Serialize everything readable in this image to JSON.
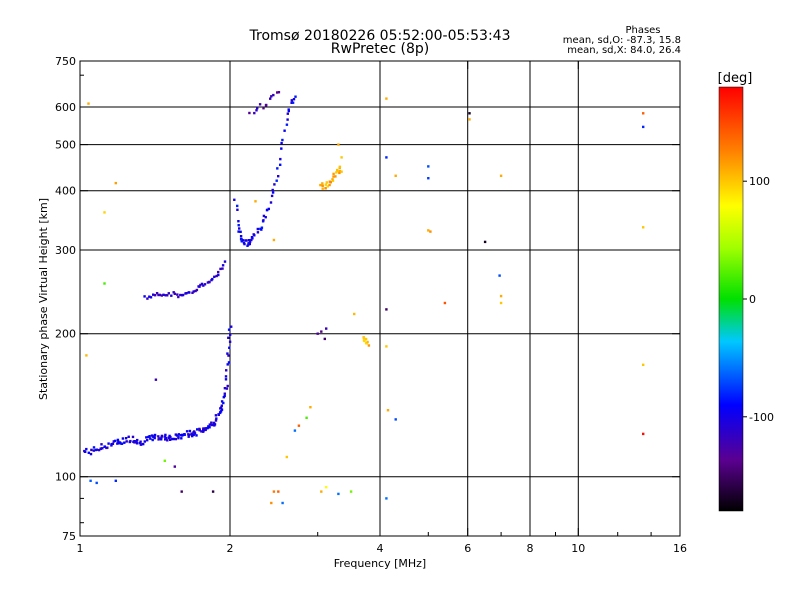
{
  "chart_data": {
    "type": "scatter",
    "title": "Tromsø 20180226 05:52:00-05:53:43",
    "subtitle": "RwPretec (8p)",
    "xlabel": "Frequency [MHz]",
    "ylabel": "Stationary phase Virtual Height [km]",
    "x_scale": "log",
    "y_scale": "log",
    "xlim": [
      1,
      16
    ],
    "ylim": [
      75,
      750
    ],
    "x_ticks": [
      1,
      2,
      4,
      6,
      8,
      10,
      16
    ],
    "y_ticks": [
      75,
      100,
      200,
      300,
      400,
      500,
      600,
      750
    ],
    "grid": true,
    "stats": {
      "heading": "Phases",
      "o_line": "mean, sd,O: -87.3, 15.8",
      "x_line": "mean, sd,X: 84.0, 26.4"
    },
    "colorbar": {
      "label": "[deg]",
      "range": [
        -180,
        180
      ],
      "ticks": [
        100,
        0,
        -100
      ]
    },
    "traces": [
      {
        "x": [
          1.02,
          1.05,
          1.08,
          1.1,
          1.12,
          1.15,
          1.18,
          1.2,
          1.22,
          1.25,
          1.28,
          1.3,
          1.32,
          1.35,
          1.38,
          1.4,
          1.42,
          1.45,
          1.48,
          1.5,
          1.52,
          1.55,
          1.58,
          1.6,
          1.62,
          1.65,
          1.68,
          1.7,
          1.72,
          1.75,
          1.78,
          1.8,
          1.82,
          1.85,
          1.87,
          1.9,
          1.92,
          1.94,
          1.96,
          1.97,
          1.98,
          1.99,
          2.0
        ],
        "y": [
          113,
          113,
          114,
          115,
          116,
          117,
          118,
          118,
          119,
          120,
          120,
          119,
          118,
          119,
          120,
          121,
          121,
          121,
          121,
          121,
          121,
          121,
          121,
          122,
          123,
          123,
          123,
          124,
          124,
          125,
          126,
          127,
          128,
          129,
          132,
          135,
          138,
          142,
          150,
          160,
          175,
          190,
          210
        ],
        "phase": -100,
        "jitter": 0.03,
        "dup": 2
      },
      {
        "x": [
          1.35,
          1.4,
          1.45,
          1.5,
          1.55,
          1.6,
          1.65,
          1.7,
          1.75,
          1.8,
          1.85,
          1.9,
          1.95
        ],
        "y": [
          238,
          240,
          242,
          243,
          242,
          240,
          242,
          248,
          252,
          256,
          262,
          270,
          282
        ],
        "phase": -110,
        "jitter": 0.02,
        "dup": 2
      },
      {
        "x": [
          2.05,
          2.08,
          2.1,
          2.12,
          2.15,
          2.18,
          2.2,
          2.25,
          2.3,
          2.35,
          2.4,
          2.45,
          2.5,
          2.55,
          2.6,
          2.65,
          2.7
        ],
        "y": [
          380,
          340,
          320,
          312,
          310,
          312,
          315,
          325,
          335,
          350,
          370,
          400,
          440,
          500,
          560,
          610,
          640
        ],
        "phase": -95,
        "jitter": 0.03,
        "dup": 2
      },
      {
        "x": [
          2.2,
          2.3,
          2.4,
          2.5
        ],
        "y": [
          580,
          600,
          620,
          640
        ],
        "phase": -125,
        "jitter": 0.03,
        "dup": 2
      },
      {
        "x": [
          3.05,
          3.1,
          3.15,
          3.2,
          3.25,
          3.3,
          3.35
        ],
        "y": [
          410,
          408,
          412,
          420,
          432,
          440,
          445
        ],
        "phase": 110,
        "jitter": 0.03,
        "dup": 2
      },
      {
        "x": [
          3.7,
          3.75,
          3.8
        ],
        "y": [
          196,
          193,
          190
        ],
        "phase": 105,
        "jitter": 0.02,
        "dup": 2
      }
    ],
    "points": [
      {
        "x": 1.05,
        "y": 98,
        "phase": -65
      },
      {
        "x": 1.08,
        "y": 97,
        "phase": -70
      },
      {
        "x": 1.18,
        "y": 98,
        "phase": -80
      },
      {
        "x": 1.04,
        "y": 610,
        "phase": 110
      },
      {
        "x": 1.18,
        "y": 415,
        "phase": 115
      },
      {
        "x": 1.12,
        "y": 360,
        "phase": 95
      },
      {
        "x": 1.12,
        "y": 255,
        "phase": 20
      },
      {
        "x": 1.03,
        "y": 180,
        "phase": 105
      },
      {
        "x": 1.42,
        "y": 160,
        "phase": -120
      },
      {
        "x": 1.55,
        "y": 105,
        "phase": -130
      },
      {
        "x": 1.6,
        "y": 93,
        "phase": -150
      },
      {
        "x": 1.85,
        "y": 93,
        "phase": -160
      },
      {
        "x": 1.48,
        "y": 108,
        "phase": 30
      },
      {
        "x": 2.25,
        "y": 380,
        "phase": 110
      },
      {
        "x": 2.45,
        "y": 315,
        "phase": 110
      },
      {
        "x": 2.45,
        "y": 93,
        "phase": 130
      },
      {
        "x": 2.5,
        "y": 93,
        "phase": 140
      },
      {
        "x": 2.55,
        "y": 88,
        "phase": -60
      },
      {
        "x": 2.42,
        "y": 88,
        "phase": 120
      },
      {
        "x": 2.6,
        "y": 110,
        "phase": 100
      },
      {
        "x": 2.75,
        "y": 128,
        "phase": 140
      },
      {
        "x": 2.85,
        "y": 133,
        "phase": 20
      },
      {
        "x": 2.9,
        "y": 140,
        "phase": 110
      },
      {
        "x": 2.7,
        "y": 125,
        "phase": -60
      },
      {
        "x": 3.0,
        "y": 200,
        "phase": -130
      },
      {
        "x": 3.05,
        "y": 202,
        "phase": -140
      },
      {
        "x": 3.12,
        "y": 205,
        "phase": -120
      },
      {
        "x": 3.1,
        "y": 195,
        "phase": -150
      },
      {
        "x": 3.05,
        "y": 93,
        "phase": 110
      },
      {
        "x": 3.12,
        "y": 95,
        "phase": 80
      },
      {
        "x": 3.3,
        "y": 92,
        "phase": -60
      },
      {
        "x": 3.5,
        "y": 93,
        "phase": 30
      },
      {
        "x": 3.55,
        "y": 220,
        "phase": 105
      },
      {
        "x": 3.3,
        "y": 500,
        "phase": 110
      },
      {
        "x": 3.35,
        "y": 470,
        "phase": 100
      },
      {
        "x": 4.12,
        "y": 625,
        "phase": 110
      },
      {
        "x": 4.12,
        "y": 470,
        "phase": -80
      },
      {
        "x": 4.12,
        "y": 225,
        "phase": -150
      },
      {
        "x": 4.12,
        "y": 188,
        "phase": 100
      },
      {
        "x": 4.15,
        "y": 138,
        "phase": 110
      },
      {
        "x": 4.3,
        "y": 132,
        "phase": -70
      },
      {
        "x": 4.3,
        "y": 430,
        "phase": 110
      },
      {
        "x": 4.12,
        "y": 90,
        "phase": -60
      },
      {
        "x": 5.0,
        "y": 450,
        "phase": -70
      },
      {
        "x": 5.0,
        "y": 425,
        "phase": -75
      },
      {
        "x": 5.0,
        "y": 330,
        "phase": 110
      },
      {
        "x": 5.05,
        "y": 328,
        "phase": 120
      },
      {
        "x": 5.4,
        "y": 232,
        "phase": 145
      },
      {
        "x": 6.05,
        "y": 582,
        "phase": -170
      },
      {
        "x": 6.05,
        "y": 565,
        "phase": 110
      },
      {
        "x": 6.5,
        "y": 312,
        "phase": -170
      },
      {
        "x": 7.0,
        "y": 430,
        "phase": 110
      },
      {
        "x": 6.95,
        "y": 265,
        "phase": -70
      },
      {
        "x": 7.0,
        "y": 240,
        "phase": 110
      },
      {
        "x": 7.0,
        "y": 232,
        "phase": 100
      },
      {
        "x": 13.5,
        "y": 582,
        "phase": 140
      },
      {
        "x": 13.5,
        "y": 545,
        "phase": -80
      },
      {
        "x": 13.5,
        "y": 335,
        "phase": 100
      },
      {
        "x": 13.5,
        "y": 172,
        "phase": 100
      },
      {
        "x": 13.5,
        "y": 123,
        "phase": 175
      }
    ]
  }
}
